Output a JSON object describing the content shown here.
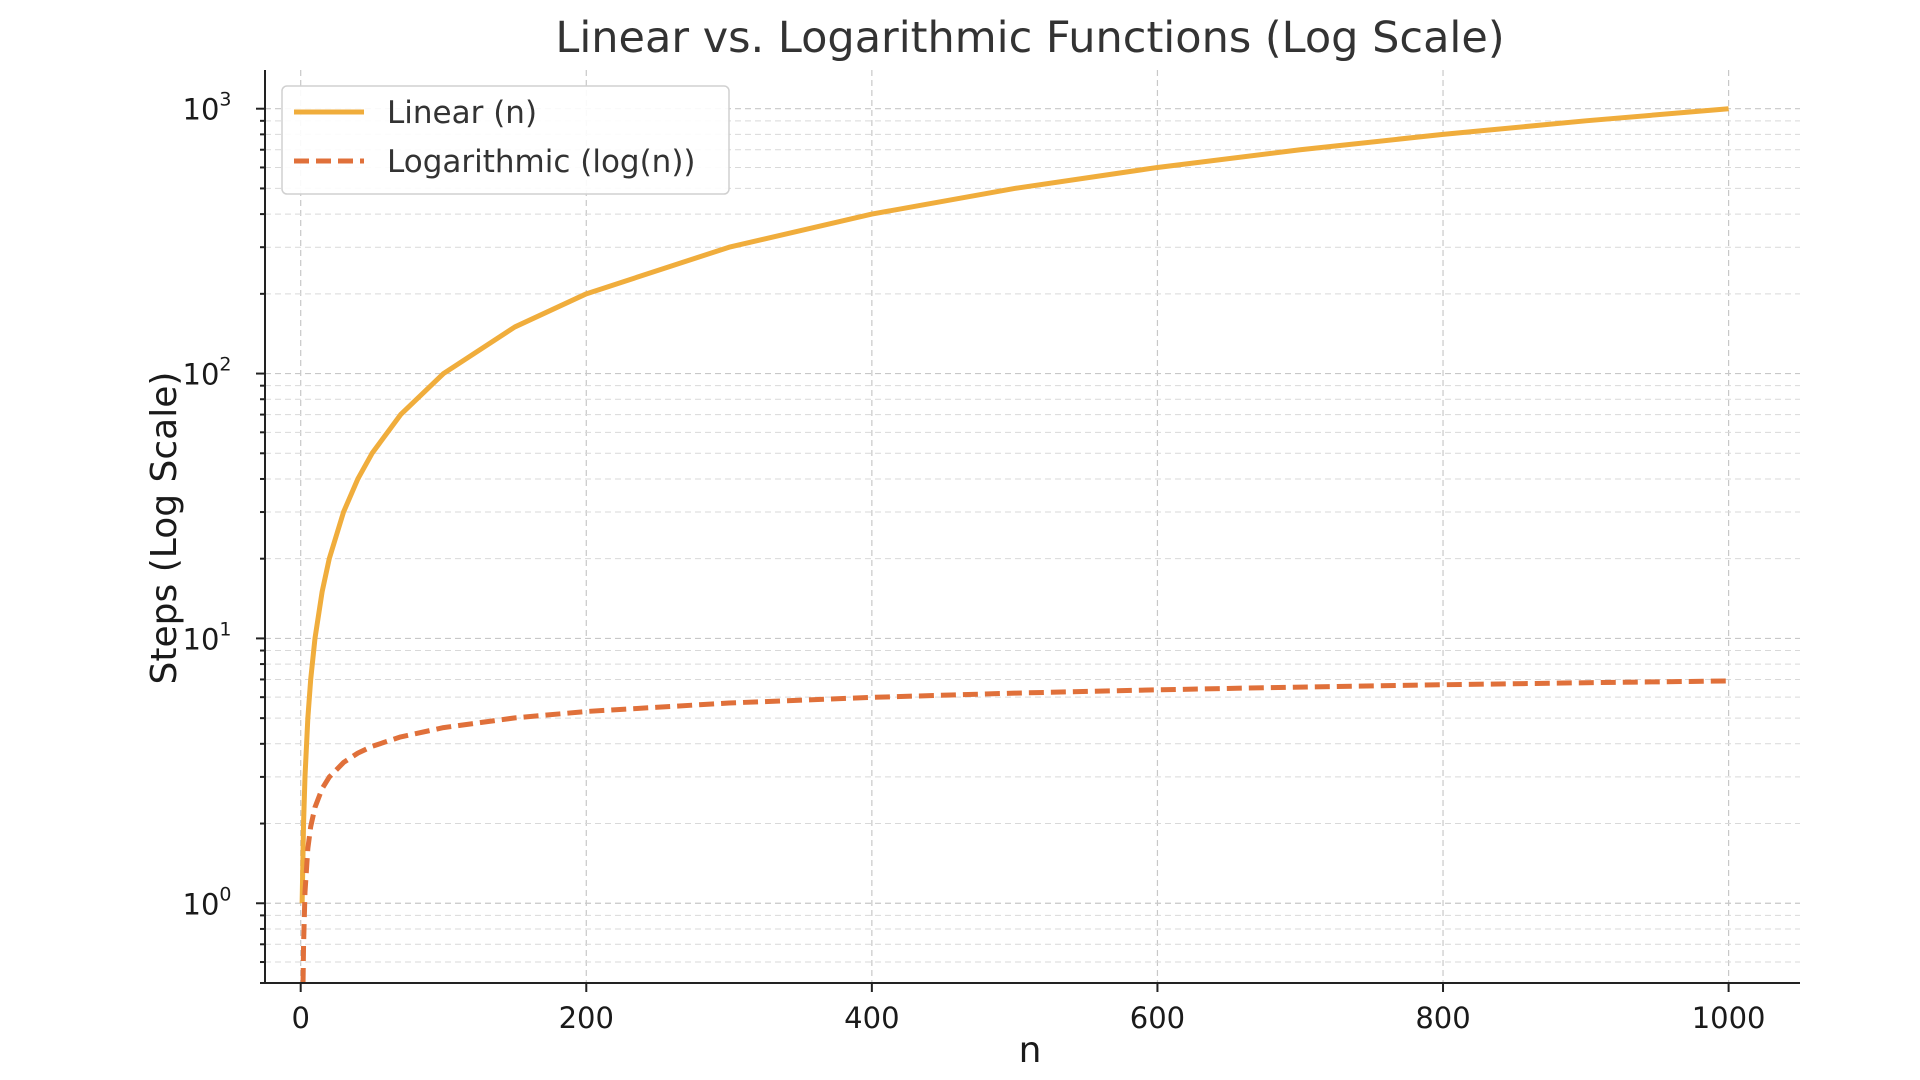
{
  "chart_data": {
    "type": "line",
    "title": "Linear vs. Logarithmic Functions (Log Scale)",
    "xlabel": "n",
    "ylabel": "Steps (Log Scale)",
    "xlim": [
      -25,
      1050
    ],
    "ylim": [
      0.5,
      1400
    ],
    "yscale": "log",
    "grid": true,
    "legend_position": "top-left",
    "x_ticks": [
      {
        "value": 0,
        "label": "0"
      },
      {
        "value": 200,
        "label": "200"
      },
      {
        "value": 400,
        "label": "400"
      },
      {
        "value": 600,
        "label": "600"
      },
      {
        "value": 800,
        "label": "800"
      },
      {
        "value": 1000,
        "label": "1000"
      }
    ],
    "y_ticks": [
      {
        "value": 1,
        "base": "10",
        "exp": "0"
      },
      {
        "value": 10,
        "base": "10",
        "exp": "1"
      },
      {
        "value": 100,
        "base": "10",
        "exp": "2"
      },
      {
        "value": 1000,
        "base": "10",
        "exp": "3"
      }
    ],
    "series": [
      {
        "name": "Linear (n)",
        "color": "#f0ad3c",
        "style": "solid",
        "x": [
          1,
          2,
          3,
          5,
          7,
          10,
          15,
          20,
          30,
          40,
          50,
          70,
          100,
          150,
          200,
          300,
          400,
          500,
          600,
          700,
          800,
          900,
          1000
        ],
        "y": [
          1,
          2,
          3,
          5,
          7,
          10,
          15,
          20,
          30,
          40,
          50,
          70,
          100,
          150,
          200,
          300,
          400,
          500,
          600,
          700,
          800,
          900,
          1000
        ]
      },
      {
        "name": "Logarithmic (log(n))",
        "color": "#e0703a",
        "style": "dashed",
        "x": [
          1.65,
          2,
          3,
          5,
          7,
          10,
          15,
          20,
          30,
          40,
          50,
          70,
          100,
          150,
          200,
          300,
          400,
          500,
          600,
          700,
          800,
          900,
          1000
        ],
        "y": [
          0.5,
          0.693,
          1.099,
          1.609,
          1.946,
          2.303,
          2.708,
          2.996,
          3.401,
          3.689,
          3.912,
          4.248,
          4.605,
          5.011,
          5.298,
          5.704,
          5.991,
          6.215,
          6.397,
          6.551,
          6.685,
          6.802,
          6.908
        ]
      }
    ]
  }
}
